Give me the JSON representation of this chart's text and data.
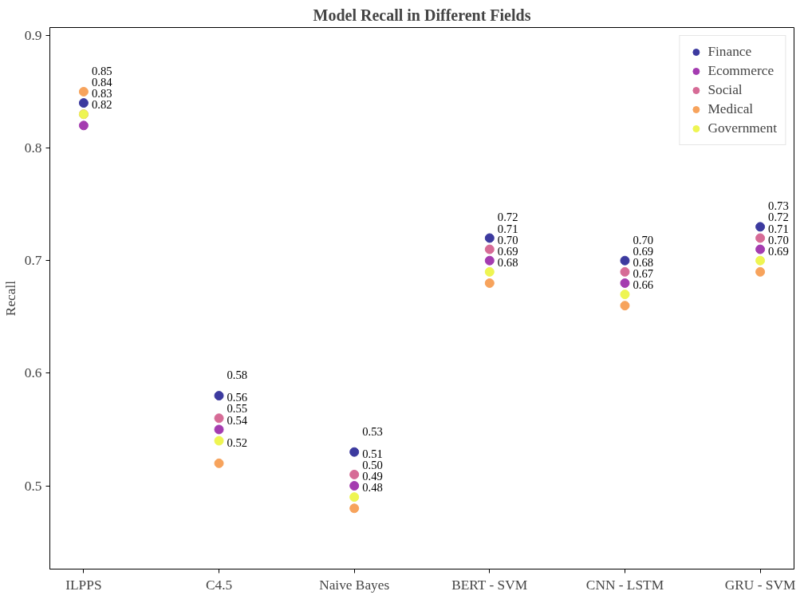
{
  "chart_data": {
    "type": "scatter",
    "title": "Model Recall in Different Fields",
    "ylabel": "Recall",
    "categories": [
      "ILPPS",
      "C4.5",
      "Naive Bayes",
      "BERT - SVM",
      "CNN - LSTM",
      "GRU - SVM"
    ],
    "series": [
      {
        "name": "Finance",
        "color": "#3c3a9f",
        "values": [
          0.84,
          0.58,
          0.53,
          0.72,
          0.7,
          0.73
        ],
        "value_labels": [
          "0.84",
          "0.58",
          "0.53",
          "0.72",
          "0.70",
          "0.73"
        ]
      },
      {
        "name": "Ecommerce",
        "color": "#a43cb0",
        "values": [
          0.82,
          0.55,
          0.5,
          0.7,
          0.68,
          0.71
        ],
        "value_labels": [
          "0.82",
          "0.55",
          "0.50",
          "0.70",
          "0.68",
          "0.71"
        ]
      },
      {
        "name": "Social",
        "color": "#d66b96",
        "values": [
          0.83,
          0.56,
          0.51,
          0.71,
          0.69,
          0.72
        ],
        "value_labels": [
          "0.83",
          "0.56",
          "0.51",
          "0.71",
          "0.69",
          "0.72"
        ]
      },
      {
        "name": "Medical",
        "color": "#f7a35c",
        "values": [
          0.85,
          0.52,
          0.48,
          0.68,
          0.66,
          0.69
        ],
        "value_labels": [
          "0.85",
          "0.52",
          "0.48",
          "0.68",
          "0.66",
          "0.69"
        ]
      },
      {
        "name": "Government",
        "color": "#eef552",
        "values": [
          0.83,
          0.54,
          0.49,
          0.69,
          0.67,
          0.7
        ],
        "value_labels": [
          null,
          "0.54",
          "0.49",
          "0.69",
          "0.67",
          "0.70"
        ]
      }
    ],
    "ylim": [
      0.426,
      0.907
    ],
    "yticks": [
      {
        "value": 0.5,
        "label": "0.5"
      },
      {
        "value": 0.6,
        "label": "0.6"
      },
      {
        "value": 0.7,
        "label": "0.7"
      },
      {
        "value": 0.8,
        "label": "0.8"
      },
      {
        "value": 0.9,
        "label": "0.9"
      }
    ],
    "grid": false,
    "legend": "top right",
    "marker": "circle"
  }
}
